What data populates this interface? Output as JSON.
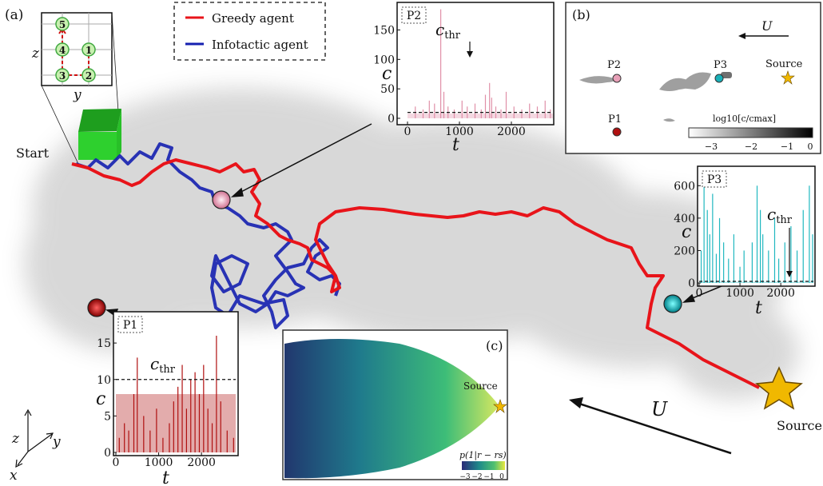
{
  "panel_labels": {
    "a": "(a)",
    "b": "(b)",
    "c": "(c)"
  },
  "legend": {
    "greedy": "Greedy agent",
    "infotactic": "Infotactic agent"
  },
  "colors": {
    "greedy": "#e8141a",
    "infotactic": "#1520b0",
    "p1": "#b01010",
    "p2": "#e8a0b8",
    "p3": "#18b0b8",
    "source": "#f0b000",
    "box": "#22cc22"
  },
  "grid_inset": {
    "zlabel": "z",
    "ylabel": "y",
    "nodes": [
      "1",
      "2",
      "3",
      "4",
      "5"
    ]
  },
  "labels": {
    "start": "Start",
    "source": "Source",
    "U": "U",
    "axes": {
      "x": "x",
      "y": "y",
      "z": "z"
    }
  },
  "panel_b": {
    "P1": "P1",
    "P2": "P2",
    "P3": "P3",
    "source": "Source",
    "U": "U",
    "colorbar_label": "log10[c/cmax]",
    "colorbar_ticks": [
      "−3",
      "−2",
      "−1",
      "0"
    ]
  },
  "panel_c": {
    "source": "Source",
    "colorbar_label": "p(1|r − rs)",
    "colorbar_ticks": [
      "−3",
      "−2",
      "−1",
      "0"
    ]
  },
  "chart_data": [
    {
      "type": "bar",
      "title": "P2",
      "xlabel": "t",
      "ylabel": "c",
      "xlim": [
        0,
        2800
      ],
      "ylim": [
        0,
        190
      ],
      "threshold": 10,
      "threshold_label": "cthr",
      "xticks": [
        "0",
        "1000",
        "2000"
      ],
      "yticks": [
        "0",
        "50",
        "100",
        "150"
      ],
      "t": [
        150,
        300,
        420,
        520,
        640,
        700,
        780,
        900,
        1050,
        1150,
        1300,
        1420,
        1500,
        1580,
        1620,
        1700,
        1800,
        1900,
        2050,
        2200,
        2350,
        2500,
        2650,
        2750
      ],
      "c": [
        20,
        15,
        30,
        25,
        185,
        45,
        20,
        15,
        30,
        20,
        25,
        15,
        40,
        60,
        35,
        20,
        15,
        45,
        20,
        15,
        25,
        20,
        30,
        15
      ]
    },
    {
      "type": "bar",
      "title": "P3",
      "xlabel": "t",
      "ylabel": "c",
      "xlim": [
        0,
        2800
      ],
      "ylim": [
        0,
        700
      ],
      "threshold": 10,
      "threshold_label": "cthr",
      "xticks": [
        "0",
        "1000",
        "2000"
      ],
      "yticks": [
        "0",
        "200",
        "400",
        "600"
      ],
      "t": [
        50,
        120,
        200,
        260,
        330,
        420,
        500,
        600,
        720,
        850,
        1000,
        1100,
        1300,
        1420,
        1500,
        1560,
        1700,
        1850,
        1950,
        2100,
        2250,
        2400,
        2550,
        2700,
        2780
      ],
      "c": [
        200,
        660,
        450,
        300,
        550,
        180,
        400,
        250,
        150,
        300,
        100,
        200,
        250,
        600,
        450,
        300,
        200,
        400,
        150,
        250,
        350,
        200,
        450,
        600,
        300
      ]
    },
    {
      "type": "bar",
      "title": "P1",
      "xlabel": "t",
      "ylabel": "c",
      "xlim": [
        0,
        2800
      ],
      "ylim": [
        0,
        16
      ],
      "threshold": 10,
      "threshold_label": "cthr",
      "xticks": [
        "0",
        "1000",
        "2000"
      ],
      "yticks": [
        "0",
        "5",
        "10",
        "15"
      ],
      "t": [
        80,
        200,
        300,
        420,
        500,
        650,
        800,
        950,
        1100,
        1250,
        1350,
        1450,
        1550,
        1650,
        1750,
        1850,
        1950,
        2050,
        2150,
        2250,
        2350,
        2450,
        2600,
        2750
      ],
      "c": [
        2,
        4,
        3,
        8,
        13,
        5,
        3,
        6,
        2,
        4,
        7,
        9,
        12,
        6,
        10,
        11,
        8,
        12,
        6,
        4,
        16,
        7,
        3,
        2
      ]
    }
  ]
}
